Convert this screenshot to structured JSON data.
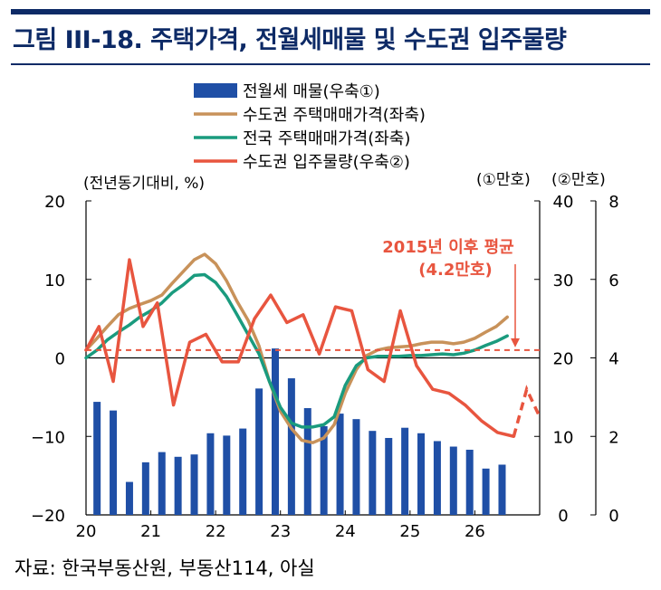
{
  "figure": {
    "title": "그림 III-18. 주택가격, 전월세매물 및 수도권 입주물량",
    "source": "자료: 한국부동산원, 부동산114, 아실"
  },
  "colors": {
    "navy": "#0d2a66",
    "bar": "#1f4fa6",
    "capital_price": "#c8925a",
    "national_price": "#1a9b7e",
    "supply": "#e8553f",
    "zero_line": "#000000"
  },
  "chart_data": {
    "type": "line",
    "left_unit": "(전년동기대비, %)",
    "right1_unit": "(①만호)",
    "right2_unit": "(②만호)",
    "left_axis": {
      "ylim": [
        -20,
        20
      ],
      "ticks": [
        "20",
        "10",
        "0",
        "−10",
        "−20"
      ]
    },
    "right1_axis": {
      "ylim": [
        0,
        40
      ],
      "ticks": [
        "40",
        "30",
        "20",
        "10",
        "0"
      ]
    },
    "right2_axis": {
      "ylim": [
        0,
        8
      ],
      "ticks": [
        "8",
        "6",
        "4",
        "2",
        "0"
      ]
    },
    "x_ticks": [
      "20",
      "21",
      "22",
      "23",
      "24",
      "25",
      "26"
    ],
    "xlim": [
      2020.0,
      2027.0
    ],
    "legend": [
      {
        "label": "전월세 매물(우축①)",
        "kind": "bar",
        "color": "#1f4fa6"
      },
      {
        "label": "수도권 주택매매가격(좌축)",
        "kind": "line",
        "color": "#c8925a"
      },
      {
        "label": "전국 주택매매가격(좌축)",
        "kind": "line",
        "color": "#1a9b7e"
      },
      {
        "label": "수도권 입주물량(우축②)",
        "kind": "line",
        "color": "#e8553f"
      }
    ],
    "annotation": {
      "line1": "2015년 이후 평균",
      "line2": "(4.2만호)",
      "value": 4.2
    },
    "series": [
      {
        "name": "전월세 매물(우축①)",
        "axis": "right1",
        "kind": "bar",
        "x": [
          2020.17,
          2020.42,
          2020.67,
          2020.92,
          2021.17,
          2021.42,
          2021.67,
          2021.92,
          2022.17,
          2022.42,
          2022.67,
          2022.92,
          2023.17,
          2023.42,
          2023.67,
          2023.92,
          2024.17,
          2024.42,
          2024.67,
          2024.92,
          2025.17,
          2025.42,
          2025.67,
          2025.92,
          2026.17,
          2026.42
        ],
        "values": [
          14.4,
          13.3,
          4.2,
          6.7,
          8.0,
          7.4,
          7.7,
          10.4,
          10.1,
          11.0,
          16.1,
          21.2,
          17.4,
          13.6,
          11.3,
          12.9,
          12.2,
          10.7,
          9.8,
          11.1,
          10.4,
          9.4,
          8.7,
          8.3,
          5.9,
          6.4
        ]
      },
      {
        "name": "수도권 주택매매가격(좌축)",
        "axis": "left",
        "kind": "line",
        "x": [
          2020.0,
          2020.17,
          2020.33,
          2020.5,
          2020.67,
          2020.83,
          2021.0,
          2021.17,
          2021.33,
          2021.5,
          2021.67,
          2021.83,
          2022.0,
          2022.17,
          2022.33,
          2022.5,
          2022.67,
          2022.83,
          2023.0,
          2023.17,
          2023.33,
          2023.5,
          2023.67,
          2023.83,
          2024.0,
          2024.17,
          2024.33,
          2024.5,
          2024.67,
          2024.83,
          2025.0,
          2025.17,
          2025.33,
          2025.5,
          2025.67,
          2025.83,
          2026.0,
          2026.17,
          2026.33,
          2026.5
        ],
        "values": [
          1.0,
          2.5,
          4.0,
          5.5,
          6.3,
          6.8,
          7.3,
          8.0,
          9.5,
          11.0,
          12.5,
          13.2,
          12.0,
          9.8,
          7.2,
          4.8,
          1.5,
          -3.0,
          -6.8,
          -9.0,
          -10.5,
          -10.8,
          -10.2,
          -8.5,
          -4.5,
          -1.5,
          0.3,
          1.0,
          1.3,
          1.4,
          1.5,
          1.8,
          2.0,
          2.0,
          1.8,
          2.0,
          2.5,
          3.3,
          4.0,
          5.2
        ]
      },
      {
        "name": "전국 주택매매가격(좌축)",
        "axis": "left",
        "kind": "line",
        "x": [
          2020.0,
          2020.17,
          2020.33,
          2020.5,
          2020.67,
          2020.83,
          2021.0,
          2021.17,
          2021.33,
          2021.5,
          2021.67,
          2021.83,
          2022.0,
          2022.17,
          2022.33,
          2022.5,
          2022.67,
          2022.83,
          2023.0,
          2023.17,
          2023.33,
          2023.5,
          2023.67,
          2023.83,
          2024.0,
          2024.17,
          2024.33,
          2024.5,
          2024.67,
          2024.83,
          2025.0,
          2025.17,
          2025.33,
          2025.5,
          2025.67,
          2025.83,
          2026.0,
          2026.17,
          2026.33,
          2026.5
        ],
        "values": [
          0.0,
          1.0,
          2.3,
          3.3,
          4.2,
          5.2,
          6.0,
          7.0,
          8.3,
          9.3,
          10.5,
          10.6,
          9.6,
          7.8,
          5.5,
          3.0,
          0.5,
          -3.0,
          -6.3,
          -8.3,
          -8.8,
          -8.8,
          -8.5,
          -7.5,
          -3.5,
          -1.0,
          0.0,
          0.2,
          0.2,
          0.2,
          0.3,
          0.3,
          0.4,
          0.5,
          0.4,
          0.6,
          1.0,
          1.6,
          2.1,
          2.8
        ]
      },
      {
        "name": "수도권 입주물량(우축②)",
        "axis": "right2",
        "kind": "line",
        "x": [
          2020.0,
          2020.2,
          2020.42,
          2020.67,
          2020.88,
          2021.1,
          2021.35,
          2021.6,
          2021.85,
          2022.1,
          2022.35,
          2022.6,
          2022.85,
          2023.1,
          2023.35,
          2023.6,
          2023.85,
          2024.1,
          2024.35,
          2024.6,
          2024.85,
          2025.1,
          2025.35,
          2025.6,
          2025.85,
          2026.1,
          2026.35,
          2026.6,
          2026.8,
          2027.0
        ],
        "values": [
          4.2,
          4.8,
          3.4,
          6.5,
          4.8,
          5.4,
          2.8,
          4.4,
          4.6,
          3.9,
          3.9,
          5.0,
          5.6,
          4.9,
          5.1,
          4.1,
          5.3,
          5.2,
          3.7,
          3.4,
          5.2,
          3.8,
          3.2,
          3.1,
          2.8,
          2.4,
          2.1,
          2.0,
          3.2,
          2.5
        ],
        "dashed_from_index": 27
      }
    ]
  }
}
